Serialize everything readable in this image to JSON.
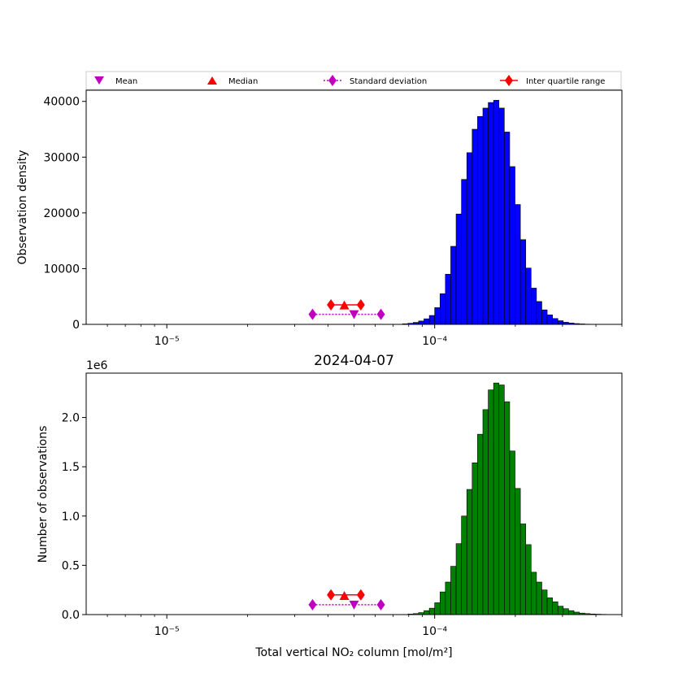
{
  "legend": {
    "position": "top, spanning full width",
    "items": [
      {
        "label": "Mean",
        "marker": "triangle-down",
        "color": "#bf00bf"
      },
      {
        "label": "Median",
        "marker": "triangle-up",
        "color": "#ff0000"
      },
      {
        "label": "Standard deviation",
        "marker": "diamond",
        "line": "dotted",
        "color": "#bf00bf"
      },
      {
        "label": "Inter quartile range",
        "marker": "diamond",
        "line": "solid",
        "color": "#ff0000"
      }
    ]
  },
  "chart_data": [
    {
      "type": "bar",
      "panel": "top",
      "title": "",
      "xlabel": "",
      "ylabel": "Observation density",
      "xscale": "log",
      "xlim": [
        5e-06,
        0.0005
      ],
      "ylim": [
        0,
        42000
      ],
      "yticks": [
        0,
        10000,
        20000,
        30000,
        40000
      ],
      "ytick_labels": [
        "0",
        "10000",
        "20000",
        "30000",
        "40000"
      ],
      "xtick_labels": [
        "10⁻⁵",
        "10⁻⁴"
      ],
      "bar_color": "#0000ff",
      "bins": {
        "log10_start": -4.7,
        "log10_width": 0.02,
        "count": 70
      },
      "values": [
        0,
        0,
        0,
        0,
        0,
        0,
        0,
        0,
        0,
        0,
        0,
        0,
        0,
        0,
        0,
        0,
        0,
        0,
        0,
        0,
        0,
        0,
        0,
        0,
        0,
        0,
        0,
        0,
        0,
        100,
        200,
        350,
        600,
        1000,
        1600,
        3000,
        5500,
        9000,
        14000,
        19800,
        26000,
        30800,
        35000,
        37300,
        38800,
        39800,
        40200,
        38800,
        34500,
        28300,
        21500,
        15200,
        10100,
        6500,
        4100,
        2600,
        1700,
        1050,
        650,
        380,
        240,
        140,
        80,
        40,
        20,
        10,
        0,
        0,
        0,
        0
      ],
      "markers": {
        "mean": {
          "x": 5e-05,
          "y": 1800
        },
        "median": {
          "x": 4.6e-05,
          "y": 3400
        },
        "std_dev": {
          "low": 3.5e-05,
          "high": 6.3e-05,
          "y": 1800
        },
        "iqr": {
          "low": 4.1e-05,
          "high": 5.3e-05,
          "y": 3500
        }
      }
    },
    {
      "type": "bar",
      "panel": "bottom",
      "title": "2024-04-07",
      "xlabel": "Total vertical NO₂ column [mol/m²]",
      "ylabel": "Number of observations",
      "offset_label": "1e6",
      "xscale": "log",
      "xlim": [
        5e-06,
        0.0005
      ],
      "ylim": [
        0,
        2450000
      ],
      "yticks": [
        0,
        500000,
        1000000,
        1500000,
        2000000
      ],
      "ytick_labels": [
        "0.0",
        "0.5",
        "1.0",
        "1.5",
        "2.0"
      ],
      "xtick_labels": [
        "10⁻⁵",
        "10⁻⁴"
      ],
      "bar_color": "#008000",
      "bins": {
        "log10_start": -4.7,
        "log10_width": 0.02,
        "count": 70
      },
      "values": [
        0,
        0,
        0,
        0,
        0,
        0,
        0,
        0,
        0,
        0,
        0,
        0,
        0,
        0,
        0,
        0,
        0,
        0,
        0,
        0,
        0,
        0,
        0,
        0,
        0,
        0,
        0,
        0,
        0,
        0,
        5000,
        10000,
        20000,
        40000,
        65000,
        120000,
        230000,
        330000,
        490000,
        720000,
        1000000,
        1270000,
        1540000,
        1830000,
        2080000,
        2280000,
        2350000,
        2330000,
        2160000,
        1660000,
        1280000,
        920000,
        710000,
        430000,
        330000,
        250000,
        170000,
        130000,
        85000,
        60000,
        40000,
        25000,
        15000,
        10000,
        6000,
        4000,
        2500,
        1500,
        800,
        0
      ],
      "markers": {
        "mean": {
          "x": 5e-05,
          "y": 100000
        },
        "median": {
          "x": 4.6e-05,
          "y": 190000
        },
        "std_dev": {
          "low": 3.5e-05,
          "high": 6.3e-05,
          "y": 100000
        },
        "iqr": {
          "low": 4.1e-05,
          "high": 5.3e-05,
          "y": 200000
        }
      }
    }
  ]
}
